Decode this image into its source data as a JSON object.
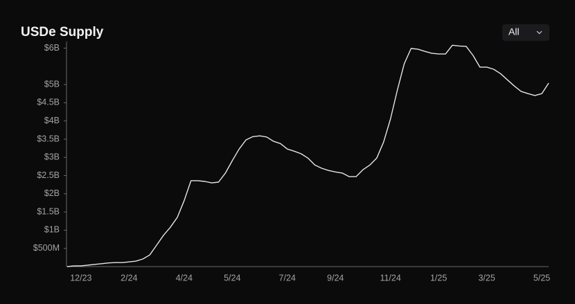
{
  "chart_data": {
    "type": "line",
    "title": "USDe Supply",
    "range_selector": "All",
    "categories": [
      null,
      null,
      "12/23",
      null,
      null,
      null,
      null,
      null,
      null,
      "2/24",
      null,
      null,
      null,
      null,
      null,
      null,
      null,
      "4/24",
      null,
      null,
      null,
      null,
      null,
      null,
      "5/24",
      null,
      null,
      null,
      null,
      null,
      null,
      null,
      "7/24",
      null,
      null,
      null,
      null,
      null,
      null,
      "9/24",
      null,
      null,
      null,
      null,
      null,
      null,
      null,
      "11/24",
      null,
      null,
      null,
      null,
      null,
      null,
      "1/25",
      null,
      null,
      null,
      null,
      null,
      null,
      "3/25",
      null,
      null,
      null,
      null,
      null,
      null,
      null,
      "5/25",
      null
    ],
    "series": [
      {
        "name": "USDe Supply",
        "color": "#e6e6e6",
        "values": [
          0,
          20000000,
          20000000,
          40000000,
          60000000,
          80000000,
          100000000,
          110000000,
          110000000,
          130000000,
          150000000,
          210000000,
          320000000,
          590000000,
          860000000,
          1080000000,
          1350000000,
          1810000000,
          2360000000,
          2360000000,
          2340000000,
          2300000000,
          2320000000,
          2570000000,
          2910000000,
          3230000000,
          3480000000,
          3570000000,
          3590000000,
          3560000000,
          3440000000,
          3380000000,
          3230000000,
          3170000000,
          3100000000,
          2980000000,
          2790000000,
          2700000000,
          2640000000,
          2600000000,
          2570000000,
          2470000000,
          2470000000,
          2660000000,
          2790000000,
          2980000000,
          3420000000,
          4050000000,
          4850000000,
          5570000000,
          5990000000,
          5970000000,
          5910000000,
          5860000000,
          5840000000,
          5840000000,
          6080000000,
          6060000000,
          6050000000,
          5800000000,
          5480000000,
          5480000000,
          5420000000,
          5300000000,
          5130000000,
          4960000000,
          4810000000,
          4750000000,
          4700000000,
          4750000000,
          5040000000
        ]
      }
    ],
    "ylim": [
      0,
      6200000000
    ],
    "yticks": [
      {
        "value": 500000000,
        "label": "$500M"
      },
      {
        "value": 1000000000,
        "label": "$1B"
      },
      {
        "value": 1500000000,
        "label": "$1.5B"
      },
      {
        "value": 2000000000,
        "label": "$2B"
      },
      {
        "value": 2500000000,
        "label": "$2.5B"
      },
      {
        "value": 3000000000,
        "label": "$3B"
      },
      {
        "value": 3500000000,
        "label": "$3.5B"
      },
      {
        "value": 4000000000,
        "label": "$4B"
      },
      {
        "value": 4500000000,
        "label": "$4.5B"
      },
      {
        "value": 5000000000,
        "label": "$5B"
      },
      {
        "value": 6000000000,
        "label": "$6B"
      }
    ],
    "grid": false
  }
}
